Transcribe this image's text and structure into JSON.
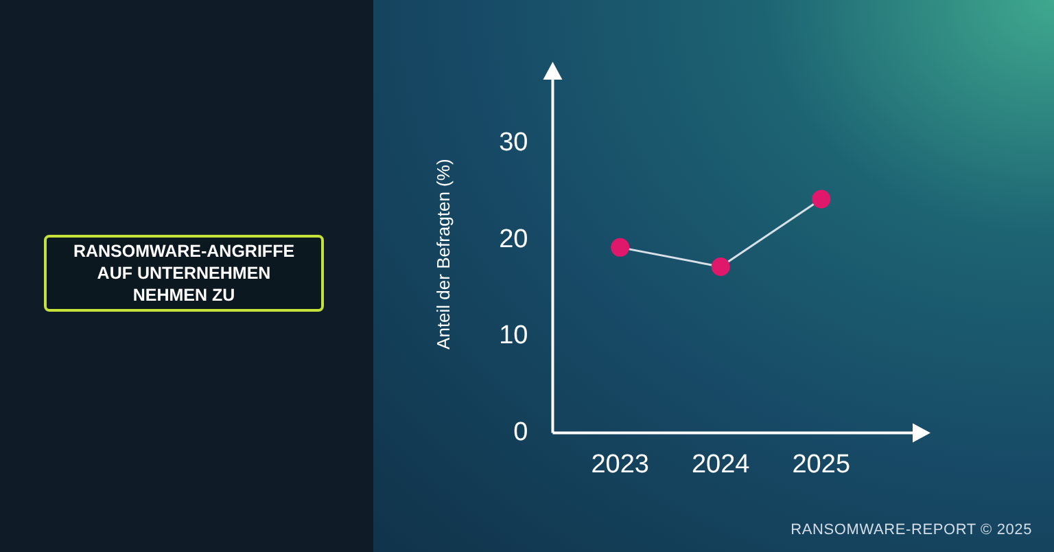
{
  "chart_data": {
    "type": "line",
    "title": "RANSOMWARE-ANGRIFFE AUF UNTERNEHMEN NEHMEN ZU",
    "ylabel": "Anteil der Befragten (%)",
    "categories": [
      "2023",
      "2024",
      "2025"
    ],
    "series": [
      {
        "color": "#e0186c",
        "values": [
          19.2,
          17.2,
          24.2
        ]
      }
    ],
    "ylim": [
      0,
      37
    ],
    "yticks": [
      0,
      10,
      20,
      30
    ],
    "marker": "circle",
    "line_style": "solid",
    "annotations": [
      "RANSOMWARE-REPORT © 2025"
    ]
  }
}
